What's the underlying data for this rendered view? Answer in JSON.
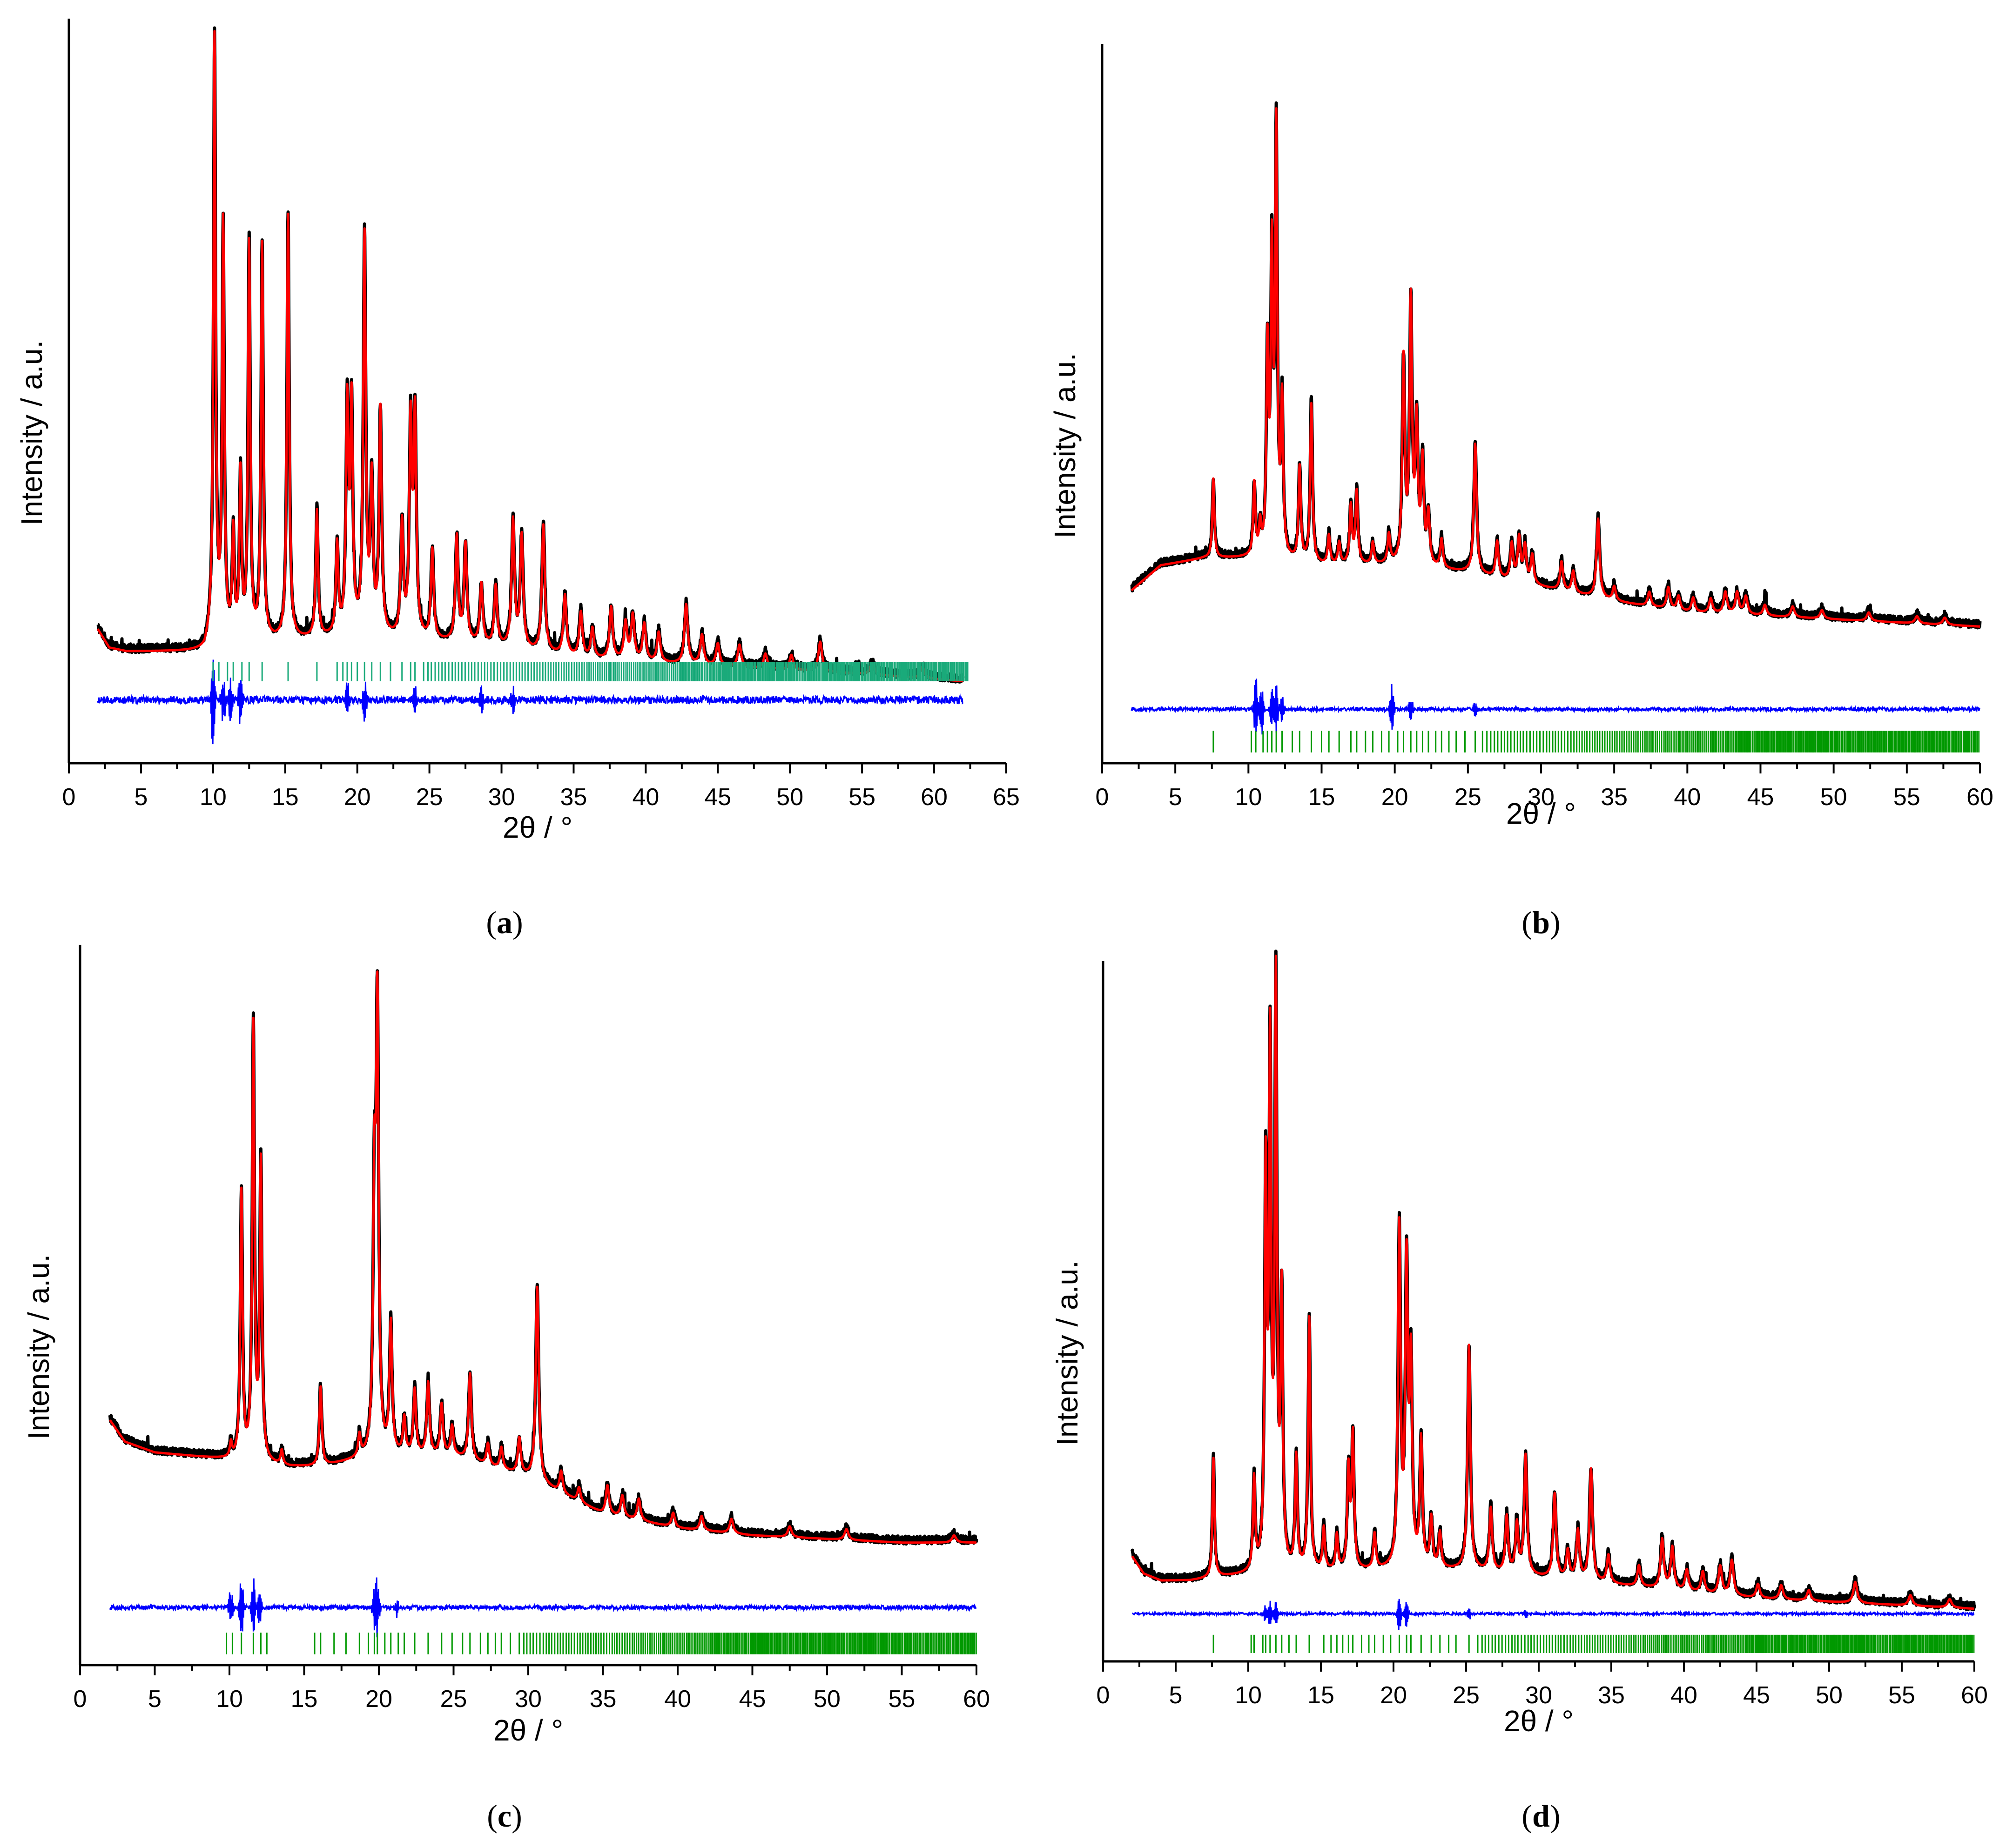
{
  "figure": {
    "colors": {
      "observed": "#000000",
      "calculated": "#ff0000",
      "difference": "#0000ff",
      "reflections_a": "#1aaa7a",
      "reflections_other": "#009900"
    }
  },
  "chart_data": [
    {
      "type": "line",
      "panel": "a",
      "caption": {
        "open": "(",
        "letter": "a",
        "close": ")"
      },
      "xlabel": "2θ / °",
      "ylabel": "Intensity / a.u.",
      "xlim": [
        0,
        65
      ],
      "xticks": [
        0,
        5,
        10,
        15,
        20,
        25,
        30,
        35,
        40,
        45,
        50,
        55,
        60,
        65
      ],
      "xticklabels": [
        "0",
        "5",
        "10",
        "15",
        "20",
        "25",
        "30",
        "35",
        "40",
        "45",
        "50",
        "55",
        "60",
        "65"
      ],
      "x_range": [
        2,
        62
      ],
      "ylim": [
        0,
        100
      ],
      "baseline": {
        "points": [
          [
            2,
            18
          ],
          [
            2.8,
            15.5
          ],
          [
            4,
            15
          ],
          [
            9.4,
            15
          ],
          [
            9.9,
            17
          ],
          [
            12,
            16
          ],
          [
            20,
            17
          ],
          [
            28,
            16
          ],
          [
            36,
            14
          ],
          [
            45,
            13
          ],
          [
            55,
            12
          ],
          [
            62,
            11
          ]
        ]
      },
      "peaks": [
        [
          10.1,
          80
        ],
        [
          10.7,
          55
        ],
        [
          11.4,
          14
        ],
        [
          11.9,
          22
        ],
        [
          12.5,
          53
        ],
        [
          13.4,
          53
        ],
        [
          15.2,
          57
        ],
        [
          17.2,
          17
        ],
        [
          18.6,
          12
        ],
        [
          19.3,
          30
        ],
        [
          19.6,
          30
        ],
        [
          20.5,
          53
        ],
        [
          21.0,
          20
        ],
        [
          21.6,
          30
        ],
        [
          23.1,
          15
        ],
        [
          23.7,
          28
        ],
        [
          24.0,
          29
        ],
        [
          25.2,
          12
        ],
        [
          26.9,
          14
        ],
        [
          27.5,
          13
        ],
        [
          28.6,
          8
        ],
        [
          29.6,
          8
        ],
        [
          30.8,
          17
        ],
        [
          31.4,
          15
        ],
        [
          32.9,
          17
        ],
        [
          34.4,
          8
        ],
        [
          35.5,
          6
        ],
        [
          36.3,
          4
        ],
        [
          37.6,
          7
        ],
        [
          38.6,
          5
        ],
        [
          39.1,
          6
        ],
        [
          39.9,
          5
        ],
        [
          40.9,
          4
        ],
        [
          42.8,
          8
        ],
        [
          43.9,
          4
        ],
        [
          45.0,
          3
        ],
        [
          46.5,
          3
        ],
        [
          48.3,
          2
        ],
        [
          50.1,
          2
        ],
        [
          52.1,
          4
        ],
        [
          55.7,
          1.5
        ],
        [
          59.2,
          1.5
        ]
      ],
      "difference": {
        "level": 8.5,
        "amp": 1.0,
        "spikes": [
          [
            10.0,
            7
          ],
          [
            10.7,
            4
          ],
          [
            11.2,
            3
          ],
          [
            11.9,
            5
          ],
          [
            19.3,
            3
          ],
          [
            20.5,
            3
          ],
          [
            24.0,
            2
          ],
          [
            28.6,
            2
          ],
          [
            30.8,
            2
          ]
        ]
      },
      "reflections": {
        "first": 10.0,
        "last": 62.4,
        "y0": 11.0,
        "y1": 13.6,
        "color_key": "reflections_a",
        "isolated": [
          10.0,
          10.4,
          11.0,
          11.4,
          12.0,
          12.5,
          13.4,
          15.2,
          17.2,
          18.6,
          19.0,
          19.3,
          19.6,
          20.0,
          20.5,
          21.0,
          21.6,
          22.3,
          23.1,
          23.7,
          24.0,
          24.6
        ]
      }
    },
    {
      "type": "line",
      "panel": "b",
      "caption": {
        "open": "(",
        "letter": "b",
        "close": ")"
      },
      "xlabel": "2θ / °",
      "ylabel": "Intensity / a.u.",
      "xlim": [
        0,
        60
      ],
      "xticks": [
        0,
        5,
        10,
        15,
        20,
        25,
        30,
        35,
        40,
        45,
        50,
        55,
        60
      ],
      "xticklabels": [
        "0",
        "5",
        "10",
        "15",
        "20",
        "25",
        "30",
        "35",
        "40",
        "45",
        "50",
        "55",
        "60"
      ],
      "x_range": [
        2,
        60
      ],
      "ylim": [
        0,
        100
      ],
      "baseline": {
        "points": [
          [
            2,
            24
          ],
          [
            4,
            27.5
          ],
          [
            7,
            28.5
          ],
          [
            10,
            28.5
          ],
          [
            15,
            27.5
          ],
          [
            20,
            27.5
          ],
          [
            25,
            26.5
          ],
          [
            30,
            24.5
          ],
          [
            35,
            22.5
          ],
          [
            40,
            21
          ],
          [
            45,
            20.5
          ],
          [
            50,
            20
          ],
          [
            55,
            19.5
          ],
          [
            60,
            19
          ]
        ]
      },
      "peaks": [
        [
          7.6,
          11
        ],
        [
          10.4,
          10
        ],
        [
          10.8,
          4
        ],
        [
          11.3,
          28
        ],
        [
          11.6,
          40
        ],
        [
          11.9,
          58
        ],
        [
          12.3,
          21
        ],
        [
          13.5,
          13
        ],
        [
          14.3,
          22
        ],
        [
          15.5,
          4
        ],
        [
          16.2,
          3
        ],
        [
          17.0,
          8
        ],
        [
          17.4,
          10
        ],
        [
          18.5,
          3
        ],
        [
          19.6,
          4
        ],
        [
          20.6,
          28
        ],
        [
          21.1,
          36
        ],
        [
          21.5,
          19
        ],
        [
          21.9,
          14
        ],
        [
          22.3,
          7
        ],
        [
          23.2,
          4
        ],
        [
          25.5,
          18
        ],
        [
          27.0,
          5
        ],
        [
          28.0,
          5
        ],
        [
          28.5,
          6
        ],
        [
          28.9,
          5
        ],
        [
          29.4,
          4
        ],
        [
          31.4,
          4
        ],
        [
          32.2,
          3
        ],
        [
          33.9,
          11
        ],
        [
          35.0,
          2
        ],
        [
          37.4,
          2
        ],
        [
          38.7,
          3
        ],
        [
          39.4,
          2
        ],
        [
          40.4,
          2
        ],
        [
          41.6,
          2
        ],
        [
          42.6,
          3
        ],
        [
          43.4,
          3
        ],
        [
          44.0,
          2.5
        ],
        [
          45.3,
          1.5
        ],
        [
          47.2,
          1.5
        ],
        [
          49.2,
          1.2
        ],
        [
          52.4,
          1.2
        ],
        [
          55.7,
          1
        ],
        [
          57.6,
          1
        ]
      ],
      "difference": {
        "level": 7.5,
        "amp": 0.5,
        "spikes": [
          [
            10.5,
            5
          ],
          [
            10.9,
            4
          ],
          [
            11.6,
            3
          ],
          [
            11.9,
            4
          ],
          [
            12.3,
            2
          ],
          [
            19.8,
            4
          ],
          [
            21.1,
            2
          ],
          [
            25.5,
            1.2
          ]
        ]
      },
      "reflections": {
        "first": 7.6,
        "last": 60.0,
        "y0": 1.5,
        "y1": 4.5,
        "color_key": "reflections_other",
        "isolated": [
          7.6,
          10.2,
          10.5,
          11.0,
          11.3,
          11.6,
          11.9,
          12.3,
          13.0,
          13.5,
          14.3,
          15.0,
          15.5,
          16.2,
          17.0,
          17.4,
          18.0,
          18.5,
          19.1,
          19.6,
          20.2,
          20.6,
          21.1,
          21.5,
          21.9,
          22.3,
          22.8,
          23.2,
          23.7,
          24.2,
          24.8,
          25.5,
          26.0
        ]
      }
    },
    {
      "type": "line",
      "panel": "c",
      "caption": {
        "open": "(",
        "letter": "c",
        "close": ")"
      },
      "xlabel": "2θ / °",
      "ylabel": "Intensity / a.u.",
      "xlim": [
        0,
        60
      ],
      "xticks": [
        0,
        5,
        10,
        15,
        20,
        25,
        30,
        35,
        40,
        45,
        50,
        55,
        60
      ],
      "xticklabels": [
        "0",
        "5",
        "10",
        "15",
        "20",
        "25",
        "30",
        "35",
        "40",
        "45",
        "50",
        "55",
        "60"
      ],
      "x_range": [
        2,
        60
      ],
      "ylim": [
        0,
        100
      ],
      "baseline": {
        "points": [
          [
            2,
            34
          ],
          [
            3,
            31
          ],
          [
            5,
            29.5
          ],
          [
            10,
            28.5
          ],
          [
            14,
            27.5
          ],
          [
            16,
            27.5
          ],
          [
            20,
            29
          ],
          [
            25,
            29
          ],
          [
            30,
            26
          ],
          [
            35,
            21
          ],
          [
            40,
            19
          ],
          [
            45,
            18
          ],
          [
            50,
            17.5
          ],
          [
            55,
            17
          ],
          [
            60,
            17
          ]
        ]
      },
      "peaks": [
        [
          10.1,
          2
        ],
        [
          10.8,
          37
        ],
        [
          11.6,
          60
        ],
        [
          12.1,
          41
        ],
        [
          13.5,
          2
        ],
        [
          16.1,
          11
        ],
        [
          18.7,
          3
        ],
        [
          19.7,
          34
        ],
        [
          19.9,
          60
        ],
        [
          20.8,
          18
        ],
        [
          21.7,
          5
        ],
        [
          22.4,
          9
        ],
        [
          23.3,
          10
        ],
        [
          24.2,
          7
        ],
        [
          24.9,
          4
        ],
        [
          26.1,
          12
        ],
        [
          27.3,
          3
        ],
        [
          28.2,
          3
        ],
        [
          29.4,
          5
        ],
        [
          30.6,
          27
        ],
        [
          32.2,
          3
        ],
        [
          33.4,
          2
        ],
        [
          35.3,
          4
        ],
        [
          36.3,
          3
        ],
        [
          37.4,
          3
        ],
        [
          39.7,
          2
        ],
        [
          41.6,
          2
        ],
        [
          43.6,
          2
        ],
        [
          47.5,
          1.5
        ],
        [
          51.3,
          1.5
        ],
        [
          58.5,
          1
        ]
      ],
      "difference": {
        "level": 8.0,
        "amp": 0.6,
        "spikes": [
          [
            10.1,
            3
          ],
          [
            10.8,
            5
          ],
          [
            11.6,
            4
          ],
          [
            12.0,
            2.5
          ],
          [
            19.7,
            3
          ],
          [
            19.9,
            4
          ],
          [
            21.2,
            1.5
          ]
        ]
      },
      "reflections": {
        "first": 9.8,
        "last": 60.0,
        "y0": 1.5,
        "y1": 4.5,
        "color_key": "reflections_other",
        "isolated": [
          9.8,
          10.2,
          10.8,
          11.6,
          12.1,
          12.5,
          15.7,
          16.1,
          17.0,
          17.8,
          18.7,
          19.3,
          19.7,
          19.9,
          20.4,
          20.8,
          21.3,
          21.7,
          22.4,
          23.3,
          24.2,
          24.9,
          25.6,
          26.1,
          26.8,
          27.3,
          27.8,
          28.2,
          28.8,
          29.4
        ]
      }
    },
    {
      "type": "line",
      "panel": "d",
      "caption": {
        "open": "(",
        "letter": "d",
        "close": ")"
      },
      "xlabel": "2θ / °",
      "ylabel": "Intensity / a.u.",
      "xlim": [
        0,
        60
      ],
      "xticks": [
        0,
        5,
        10,
        15,
        20,
        25,
        30,
        35,
        40,
        45,
        50,
        55,
        60
      ],
      "xticklabels": [
        "0",
        "5",
        "10",
        "15",
        "20",
        "25",
        "30",
        "35",
        "40",
        "45",
        "50",
        "55",
        "60"
      ],
      "x_range": [
        2,
        60
      ],
      "ylim": [
        0,
        100
      ],
      "baseline": {
        "points": [
          [
            2,
            15
          ],
          [
            2.8,
            12.5
          ],
          [
            4,
            11.5
          ],
          [
            6,
            11.5
          ],
          [
            8,
            12
          ],
          [
            12,
            12.5
          ],
          [
            20,
            13
          ],
          [
            25,
            13
          ],
          [
            30,
            12
          ],
          [
            35,
            11
          ],
          [
            40,
            10
          ],
          [
            45,
            9
          ],
          [
            50,
            8.5
          ],
          [
            55,
            8
          ],
          [
            60,
            7.5
          ]
        ]
      },
      "peaks": [
        [
          7.6,
          17
        ],
        [
          10.4,
          13
        ],
        [
          11.2,
          55
        ],
        [
          11.5,
          72
        ],
        [
          11.9,
          82
        ],
        [
          12.3,
          38
        ],
        [
          13.3,
          16
        ],
        [
          14.2,
          36
        ],
        [
          15.2,
          6
        ],
        [
          16.1,
          5
        ],
        [
          16.9,
          14
        ],
        [
          17.2,
          19
        ],
        [
          18.7,
          5
        ],
        [
          20.4,
          48
        ],
        [
          20.9,
          42
        ],
        [
          21.2,
          28
        ],
        [
          21.9,
          18
        ],
        [
          22.6,
          7
        ],
        [
          23.2,
          5
        ],
        [
          25.2,
          32
        ],
        [
          26.7,
          9
        ],
        [
          27.8,
          8
        ],
        [
          28.5,
          7
        ],
        [
          29.1,
          17
        ],
        [
          31.1,
          12
        ],
        [
          32.0,
          4
        ],
        [
          32.7,
          7
        ],
        [
          33.6,
          16
        ],
        [
          34.8,
          4
        ],
        [
          36.9,
          3
        ],
        [
          38.5,
          7
        ],
        [
          39.2,
          6
        ],
        [
          40.2,
          3
        ],
        [
          41.3,
          3
        ],
        [
          42.5,
          4
        ],
        [
          43.3,
          5
        ],
        [
          45.1,
          2
        ],
        [
          46.7,
          2
        ],
        [
          48.6,
          1.5
        ],
        [
          51.8,
          3
        ],
        [
          55.6,
          1.5
        ],
        [
          58.3,
          1.2
        ]
      ],
      "difference": {
        "level": 6.8,
        "amp": 0.35,
        "spikes": [
          [
            11.2,
            1.5
          ],
          [
            11.5,
            2
          ],
          [
            11.9,
            2
          ],
          [
            20.4,
            2.5
          ],
          [
            20.9,
            2
          ],
          [
            25.2,
            1
          ],
          [
            29.1,
            0.8
          ]
        ]
      },
      "reflections": {
        "first": 7.6,
        "last": 60.0,
        "y0": 1.2,
        "y1": 3.8,
        "color_key": "reflections_other",
        "isolated": [
          7.6,
          10.2,
          10.4,
          11.0,
          11.2,
          11.5,
          11.9,
          12.3,
          12.8,
          13.3,
          14.2,
          15.2,
          15.7,
          16.1,
          16.5,
          16.9,
          17.2,
          17.8,
          18.3,
          18.7,
          19.3,
          19.8,
          20.4,
          20.9,
          21.2,
          21.9,
          22.6,
          23.2,
          23.8,
          24.3,
          25.2,
          25.8
        ]
      }
    }
  ]
}
